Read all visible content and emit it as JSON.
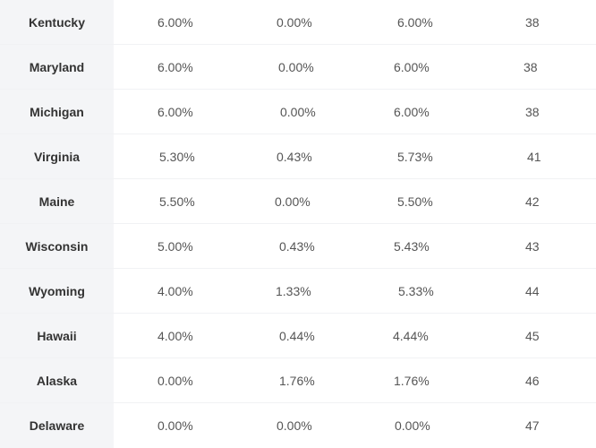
{
  "rows": [
    {
      "state": "Kentucky",
      "v1": "6.00%",
      "v2": "0.00%",
      "v3": "6.00%",
      "rank": "38"
    },
    {
      "state": "Maryland",
      "v1": "6.00%",
      "v2": "0.00%",
      "v3": "6.00%",
      "rank": "38"
    },
    {
      "state": "Michigan",
      "v1": "6.00%",
      "v2": "0.00%",
      "v3": "6.00%",
      "rank": "38"
    },
    {
      "state": "Virginia",
      "v1": "5.30%",
      "v2": "0.43%",
      "v3": "5.73%",
      "rank": "41"
    },
    {
      "state": "Maine",
      "v1": "5.50%",
      "v2": "0.00%",
      "v3": "5.50%",
      "rank": "42"
    },
    {
      "state": "Wisconsin",
      "v1": "5.00%",
      "v2": "0.43%",
      "v3": "5.43%",
      "rank": "43"
    },
    {
      "state": "Wyoming",
      "v1": "4.00%",
      "v2": "1.33%",
      "v3": "5.33%",
      "rank": "44"
    },
    {
      "state": "Hawaii",
      "v1": "4.00%",
      "v2": "0.44%",
      "v3": "4.44%",
      "rank": "45"
    },
    {
      "state": "Alaska",
      "v1": "0.00%",
      "v2": "1.76%",
      "v3": "1.76%",
      "rank": "46"
    },
    {
      "state": "Delaware",
      "v1": "0.00%",
      "v2": "0.00%",
      "v3": "0.00%",
      "rank": "47"
    }
  ]
}
